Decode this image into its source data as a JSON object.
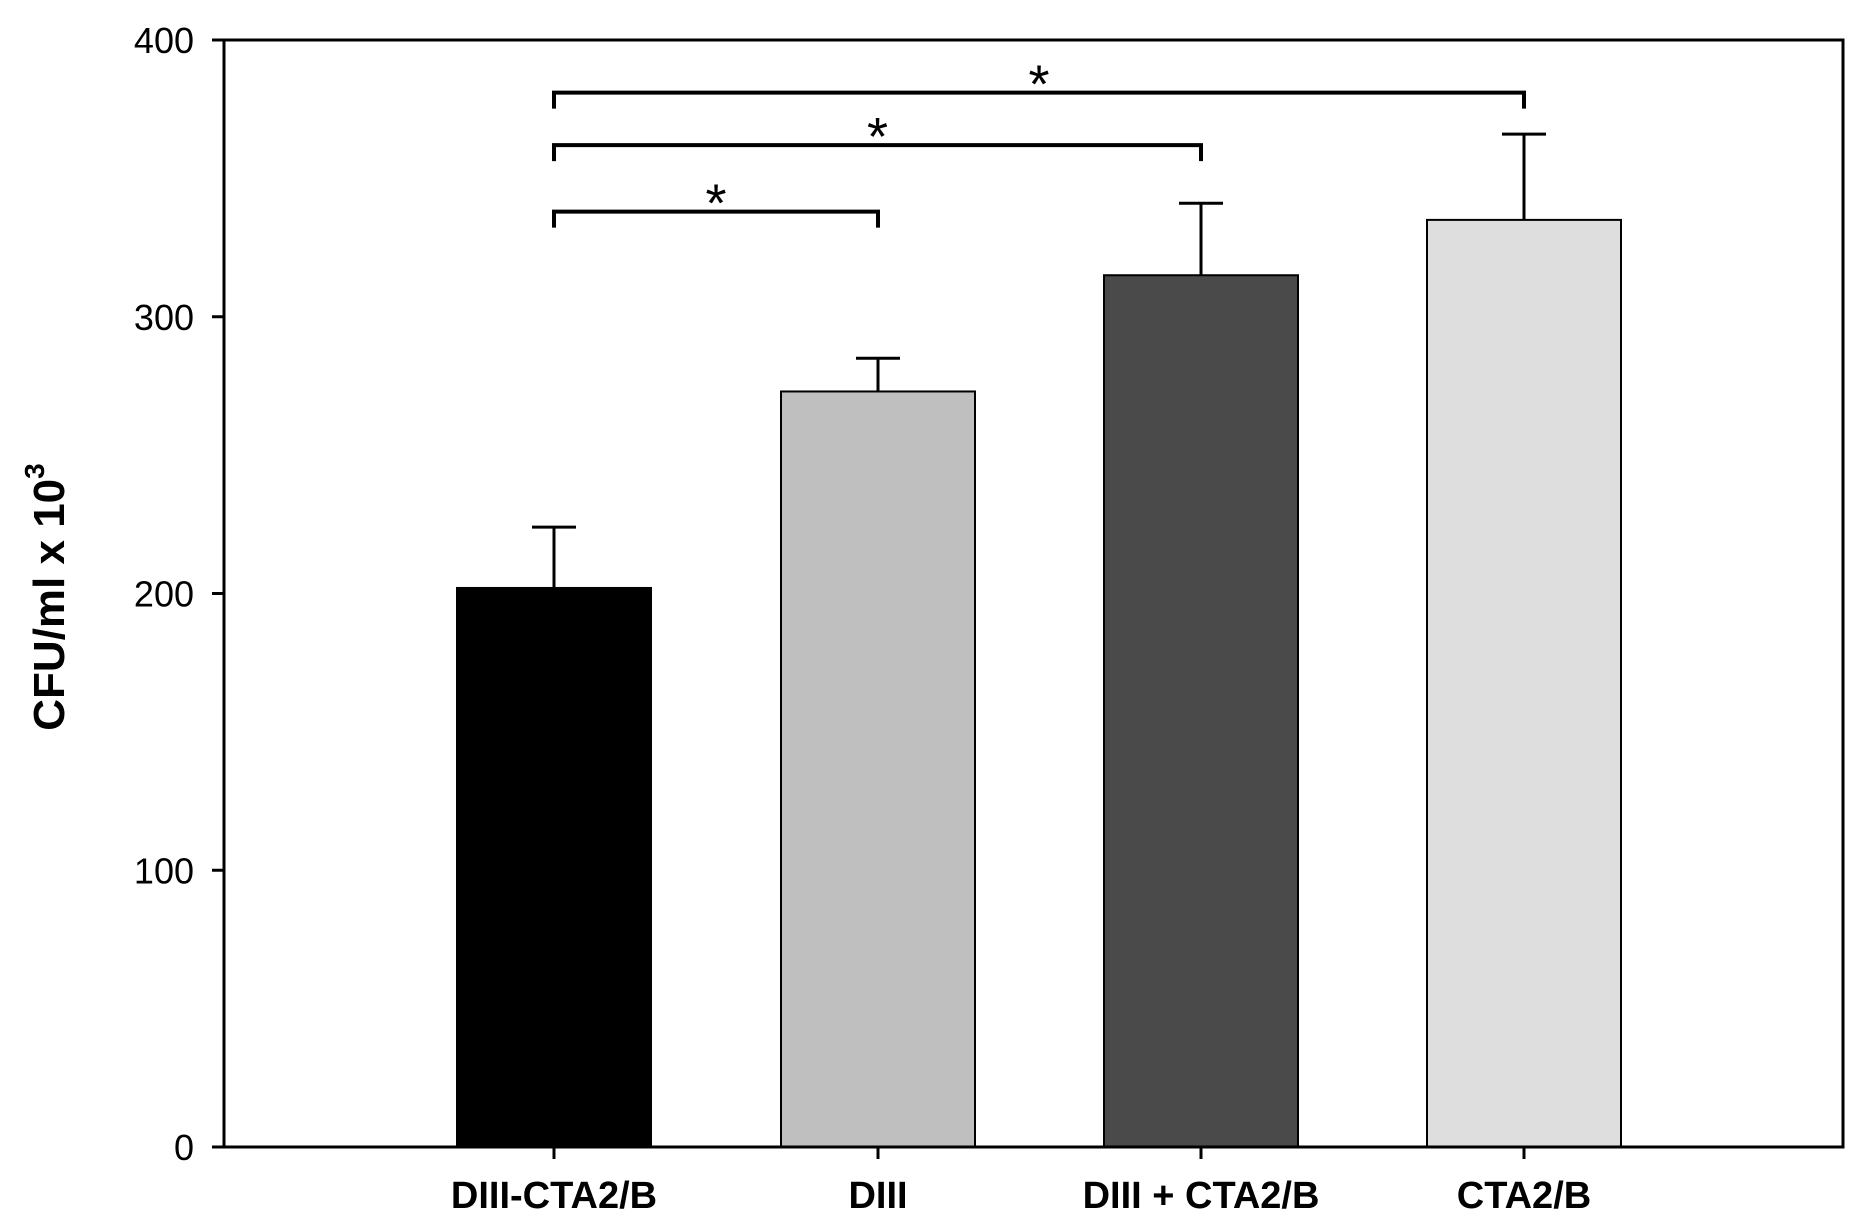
{
  "chart_data": {
    "type": "bar",
    "title": "",
    "xlabel": "",
    "ylabel": "CFU/ml x 10",
    "ylabel_superscript": "3",
    "ylim": [
      0,
      400
    ],
    "yticks": [
      0,
      100,
      200,
      300,
      400
    ],
    "ytick_labels": [
      "0",
      "100",
      "200",
      "300",
      "400"
    ],
    "categories": [
      "DIII-CTA2/B",
      "DIII",
      "DIII + CTA2/B",
      "CTA2/B"
    ],
    "values": [
      202,
      273,
      315,
      335
    ],
    "error_upper": [
      22,
      12,
      26,
      31
    ],
    "bar_colors": [
      "#000000",
      "#bfbfbf",
      "#4a4a4a",
      "#dedede"
    ],
    "significance": [
      {
        "from": 0,
        "to": 1,
        "y": 338,
        "label": "*"
      },
      {
        "from": 0,
        "to": 2,
        "y": 362,
        "label": "*"
      },
      {
        "from": 0,
        "to": 3,
        "y": 381,
        "label": "*"
      }
    ],
    "grid": false,
    "legend": "none"
  }
}
